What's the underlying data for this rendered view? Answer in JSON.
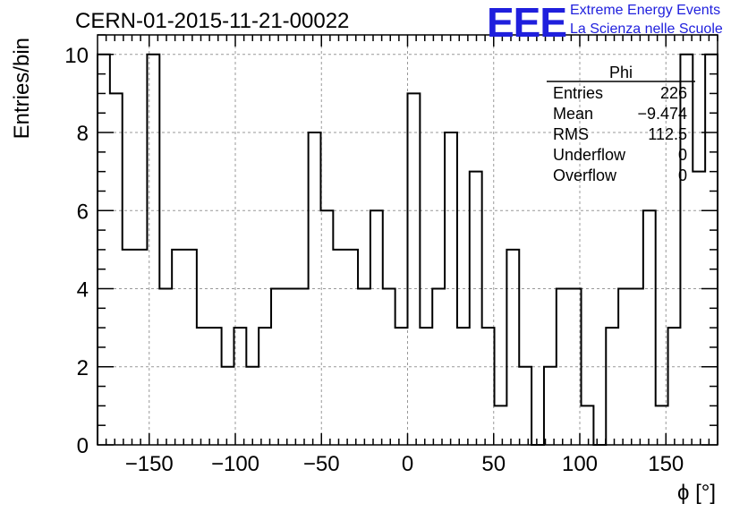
{
  "title": "CERN-01-2015-11-21-00022",
  "logo": {
    "mark": "EEE",
    "line1": "Extreme Energy Events",
    "line2": "La Scienza nelle Scuole",
    "color": "#1f1fdd"
  },
  "chart_data": {
    "type": "bar",
    "histogram": true,
    "xlabel": "ϕ [°]",
    "ylabel": "Entries/bin",
    "xlim": [
      -180,
      180
    ],
    "ylim": [
      0,
      10.5
    ],
    "x_ticks": [
      -150,
      -100,
      -50,
      0,
      50,
      100,
      150
    ],
    "x_tick_labels": [
      "−150",
      "−100",
      "−50",
      "0",
      "50",
      "100",
      "150"
    ],
    "y_ticks": [
      0,
      2,
      4,
      6,
      8,
      10
    ],
    "grid": true,
    "bin_edges": [
      -180,
      -172.8,
      -165.6,
      -158.4,
      -151.2,
      -144,
      -136.8,
      -129.6,
      -122.4,
      -115.2,
      -108,
      -100.8,
      -93.6,
      -86.4,
      -79.2,
      -72,
      -64.8,
      -57.6,
      -50.4,
      -43.2,
      -36,
      -28.8,
      -21.6,
      -14.4,
      -7.2,
      0,
      7.2,
      14.4,
      21.6,
      28.8,
      36,
      43.2,
      50.4,
      57.6,
      64.8,
      72,
      79.2,
      86.4,
      93.6,
      100.8,
      108,
      115.2,
      122.4,
      129.6,
      136.8,
      144,
      151.2,
      158.4,
      165.6,
      172.8,
      180
    ],
    "values": [
      10,
      9,
      5,
      5,
      10,
      4,
      5,
      5,
      3,
      3,
      2,
      3,
      2,
      3,
      4,
      4,
      4,
      8,
      6,
      5,
      5,
      4,
      6,
      4,
      3,
      9,
      3,
      4,
      8,
      3,
      7,
      3,
      1,
      5,
      2,
      0,
      2,
      4,
      4,
      1,
      0,
      3,
      4,
      4,
      6,
      1,
      3,
      10,
      7,
      10
    ],
    "stats": {
      "title": "Phi",
      "rows": [
        {
          "label": "Entries",
          "value": "226"
        },
        {
          "label": "Mean",
          "value": "−9.474"
        },
        {
          "label": "RMS",
          "value": "112.5"
        },
        {
          "label": "Underflow",
          "value": "0"
        },
        {
          "label": "Overflow",
          "value": "0"
        }
      ]
    }
  }
}
